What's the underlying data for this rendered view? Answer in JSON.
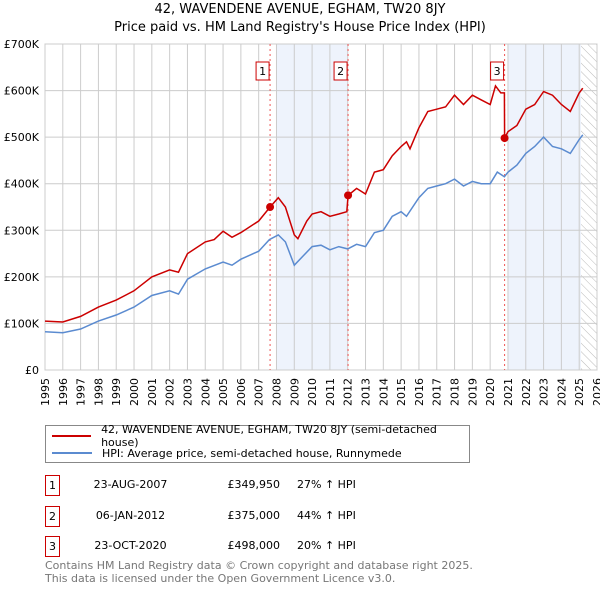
{
  "title": "42, WAVENDENE AVENUE, EGHAM, TW20 8JY",
  "subtitle": "Price paid vs. HM Land Registry's House Price Index (HPI)",
  "colors": {
    "price": "#cc0000",
    "hpi": "#5b8bd0",
    "shade": "#eef3fc"
  },
  "chart_data": {
    "type": "line",
    "title": "Price paid vs. HM Land Registry's House Price Index (HPI)",
    "xlabel": "",
    "ylabel": "",
    "xlim": [
      1995,
      2026
    ],
    "ylim": [
      0,
      700000
    ],
    "yticks": [
      "£0",
      "£100K",
      "£200K",
      "£300K",
      "£400K",
      "£500K",
      "£600K",
      "£700K"
    ],
    "ytick_values": [
      0,
      100000,
      200000,
      300000,
      400000,
      500000,
      600000,
      700000
    ],
    "xticks": [
      "1995",
      "1996",
      "1997",
      "1998",
      "1999",
      "2000",
      "2001",
      "2002",
      "2003",
      "2004",
      "2005",
      "2006",
      "2007",
      "2008",
      "2009",
      "2010",
      "2011",
      "2012",
      "2013",
      "2014",
      "2015",
      "2016",
      "2017",
      "2018",
      "2019",
      "2020",
      "2021",
      "2022",
      "2023",
      "2024",
      "2025",
      "2026"
    ],
    "grid": true,
    "shaded_periods": [
      [
        2008.0,
        2012.0
      ],
      [
        2021.0,
        2025.1
      ]
    ],
    "hatched_period": [
      2025.1,
      2026
    ],
    "series": [
      {
        "name": "42, WAVENDENE AVENUE, EGHAM, TW20 8JY (semi-detached house)",
        "x": [
          1995,
          1996,
          1997,
          1998,
          1999,
          2000,
          2001,
          2002,
          2002.5,
          2003,
          2004,
          2004.5,
          2005,
          2005.5,
          2006,
          2007,
          2007.64,
          2008.1,
          2008.5,
          2009,
          2009.2,
          2009.7,
          2010,
          2010.5,
          2011,
          2011.5,
          2011.95,
          2012.02,
          2012.5,
          2013,
          2013.5,
          2014,
          2014.5,
          2015,
          2015.3,
          2015.5,
          2016,
          2016.5,
          2017,
          2017.5,
          2018,
          2018.5,
          2019,
          2019.5,
          2020,
          2020.3,
          2020.6,
          2020.8,
          2020.81,
          2021,
          2021.5,
          2022,
          2022.5,
          2023,
          2023.5,
          2024,
          2024.5,
          2025,
          2025.2
        ],
        "values": [
          105000,
          103000,
          115000,
          135000,
          150000,
          170000,
          200000,
          215000,
          210000,
          250000,
          275000,
          280000,
          298000,
          285000,
          295000,
          320000,
          349950,
          370000,
          350000,
          290000,
          282000,
          320000,
          335000,
          340000,
          330000,
          335000,
          340000,
          375000,
          390000,
          378000,
          425000,
          430000,
          460000,
          480000,
          490000,
          475000,
          520000,
          555000,
          560000,
          565000,
          590000,
          570000,
          590000,
          580000,
          570000,
          610000,
          595000,
          595000,
          498000,
          512000,
          525000,
          560000,
          570000,
          598000,
          590000,
          570000,
          555000,
          595000,
          605000
        ]
      },
      {
        "name": "HPI: Average price, semi-detached house, Runnymede",
        "x": [
          1995,
          1996,
          1997,
          1998,
          1999,
          2000,
          2001,
          2002,
          2002.5,
          2003,
          2004,
          2005,
          2005.5,
          2006,
          2007,
          2007.6,
          2008.1,
          2008.5,
          2009,
          2009.5,
          2010,
          2010.5,
          2011,
          2011.5,
          2012,
          2012.5,
          2013,
          2013.5,
          2014,
          2014.5,
          2015,
          2015.3,
          2016,
          2016.5,
          2017,
          2017.5,
          2018,
          2018.5,
          2019,
          2019.5,
          2020,
          2020.4,
          2020.8,
          2021,
          2021.5,
          2022,
          2022.5,
          2023,
          2023.5,
          2024,
          2024.5,
          2025,
          2025.2
        ],
        "values": [
          82000,
          80000,
          88000,
          105000,
          118000,
          135000,
          160000,
          170000,
          163000,
          195000,
          217000,
          232000,
          225000,
          238000,
          255000,
          280000,
          290000,
          275000,
          225000,
          245000,
          265000,
          268000,
          258000,
          265000,
          260000,
          270000,
          265000,
          295000,
          300000,
          330000,
          340000,
          330000,
          370000,
          390000,
          395000,
          400000,
          410000,
          395000,
          405000,
          400000,
          400000,
          425000,
          415000,
          425000,
          440000,
          465000,
          480000,
          500000,
          480000,
          475000,
          465000,
          495000,
          505000
        ]
      }
    ],
    "sales": [
      {
        "label": "1",
        "x": 2007.64,
        "value": 349950,
        "date": "23-AUG-2007",
        "price": "£349,950",
        "hpi": "27% ↑ HPI"
      },
      {
        "label": "2",
        "x": 2012.02,
        "value": 375000,
        "date": "06-JAN-2012",
        "price": "£375,000",
        "hpi": "44% ↑ HPI"
      },
      {
        "label": "3",
        "x": 2020.81,
        "value": 498000,
        "date": "23-OCT-2020",
        "price": "£498,000",
        "hpi": "20% ↑ HPI"
      }
    ]
  },
  "legend": {
    "price_label": "42, WAVENDENE AVENUE, EGHAM, TW20 8JY (semi-detached house)",
    "hpi_label": "HPI: Average price, semi-detached house, Runnymede"
  },
  "footer": {
    "line1": "Contains HM Land Registry data © Crown copyright and database right 2025.",
    "line2": "This data is licensed under the Open Government Licence v3.0."
  }
}
